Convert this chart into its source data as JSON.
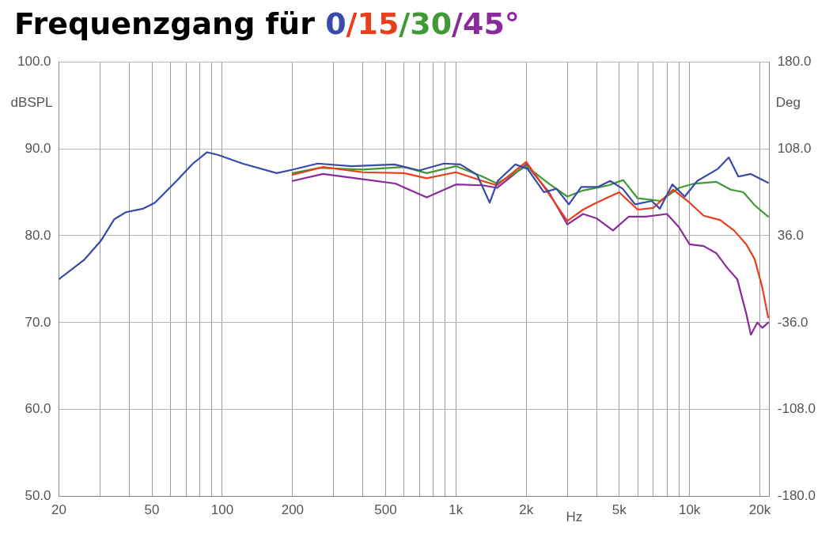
{
  "chart_data": {
    "type": "line",
    "title": "Frequenzgang für",
    "xlabel": "Hz",
    "ylabel": "dBSPL",
    "y2label": "Deg",
    "log": "x",
    "grid": true,
    "legend": false,
    "marker": "none",
    "line_style": "solid",
    "xlim": [
      20,
      22000
    ],
    "ylim": [
      50,
      100
    ],
    "y2lim": [
      -180,
      180
    ],
    "xticks": [
      20,
      {
        "value": 30,
        "label": null
      },
      {
        "value": 40,
        "label": null
      },
      50,
      {
        "value": 60,
        "label": null
      },
      {
        "value": 70,
        "label": null
      },
      {
        "value": 80,
        "label": null
      },
      {
        "value": 90,
        "label": null
      },
      100,
      200,
      {
        "value": 300,
        "label": null
      },
      {
        "value": 400,
        "label": null
      },
      500,
      {
        "value": 600,
        "label": null
      },
      {
        "value": 700,
        "label": null
      },
      {
        "value": 800,
        "label": null
      },
      {
        "value": 900,
        "label": null
      },
      {
        "value": 1000,
        "label": "1k"
      },
      {
        "value": 2000,
        "label": "2k"
      },
      {
        "value": 3000,
        "label": null
      },
      {
        "value": 4000,
        "label": null
      },
      {
        "value": 5000,
        "label": "5k"
      },
      {
        "value": 6000,
        "label": null
      },
      {
        "value": 7000,
        "label": null
      },
      {
        "value": 8000,
        "label": null
      },
      {
        "value": 9000,
        "label": null
      },
      {
        "value": 10000,
        "label": "10k"
      },
      {
        "value": 20000,
        "label": "20k"
      }
    ],
    "yticks": [
      {
        "value": 50,
        "label": "50.0"
      },
      {
        "value": 60,
        "label": "60.0"
      },
      {
        "value": 70,
        "label": "70.0"
      },
      {
        "value": 80,
        "label": "80.0"
      },
      {
        "value": 90,
        "label": "90.0"
      },
      {
        "value": 100,
        "label": "100.0"
      }
    ],
    "y2ticks": [
      {
        "value": -180,
        "label": "-180.0"
      },
      {
        "value": -108,
        "label": "-108.0"
      },
      {
        "value": -36,
        "label": "-36.0"
      },
      {
        "value": 36,
        "label": "36.0"
      },
      {
        "value": 108,
        "label": "108.0"
      },
      {
        "value": 180,
        "label": "180.0"
      }
    ],
    "series": [
      {
        "name": "0",
        "color": "#3a4aa8",
        "x": [
          20,
          25.6,
          30.2,
          34.5,
          38.7,
          45.7,
          51.5,
          63.7,
          74.9,
          86.1,
          95.7,
          122,
          171,
          200,
          256,
          357,
          545,
          697,
          888,
          1045,
          1232,
          1395,
          1510,
          1796,
          2024,
          2383,
          2695,
          3044,
          3440,
          4046,
          4575,
          5173,
          5849,
          6886,
          7460,
          8435,
          9539,
          10790,
          13240,
          14720,
          16180,
          18290,
          21670
        ],
        "values": [
          75.0,
          77.2,
          79.4,
          81.9,
          82.7,
          83.1,
          83.8,
          86.3,
          88.3,
          89.6,
          89.3,
          88.3,
          87.2,
          87.6,
          88.3,
          88.0,
          88.2,
          87.5,
          88.3,
          88.2,
          87.0,
          83.8,
          86.3,
          88.2,
          87.7,
          85.0,
          85.4,
          83.6,
          85.6,
          85.6,
          86.3,
          85.4,
          83.6,
          84.0,
          83.1,
          85.9,
          84.5,
          86.3,
          87.7,
          89.0,
          86.8,
          87.1,
          86.1
        ]
      },
      {
        "name": "/15",
        "color": "#e8401c",
        "x": [
          200,
          270,
          400,
          600,
          750,
          1000,
          1300,
          1500,
          2000,
          2400,
          3000,
          3500,
          4000,
          5000,
          6000,
          7000,
          8500,
          10000,
          11500,
          13500,
          15500,
          17500,
          19000,
          20500,
          21700
        ],
        "values": [
          87.0,
          87.9,
          87.3,
          87.2,
          86.6,
          87.3,
          86.3,
          85.8,
          88.5,
          85.5,
          81.7,
          83.0,
          83.8,
          85.0,
          83.0,
          83.2,
          85.3,
          83.8,
          82.3,
          81.8,
          80.6,
          79.0,
          77.3,
          74.0,
          70.6
        ]
      },
      {
        "name": "/30",
        "color": "#3f9a35",
        "x": [
          200,
          260,
          400,
          600,
          750,
          1000,
          1300,
          1500,
          2000,
          2500,
          3000,
          3500,
          4500,
          5200,
          6000,
          7500,
          9000,
          10500,
          13000,
          15000,
          17000,
          19000,
          21700
        ],
        "values": [
          87.2,
          87.8,
          87.6,
          87.9,
          87.2,
          88.0,
          86.8,
          86.0,
          88.0,
          86.0,
          84.5,
          85.2,
          85.8,
          86.4,
          84.3,
          84.0,
          85.5,
          86.0,
          86.2,
          85.3,
          85.0,
          83.5,
          82.2
        ]
      },
      {
        "name": "/45°",
        "color": "#8b2a9c",
        "x": [
          200,
          270,
          400,
          550,
          750,
          1000,
          1300,
          1500,
          2000,
          2500,
          3000,
          3500,
          4000,
          4700,
          5500,
          6500,
          8000,
          9000,
          10000,
          11500,
          13000,
          14500,
          16000,
          17500,
          18300,
          19500,
          20500,
          21700
        ],
        "values": [
          86.3,
          87.1,
          86.5,
          86.0,
          84.4,
          85.9,
          85.8,
          85.5,
          88.2,
          85.0,
          81.3,
          82.5,
          82.0,
          80.6,
          82.2,
          82.2,
          82.5,
          81.0,
          79.0,
          78.8,
          78.0,
          76.3,
          75.0,
          71.0,
          68.6,
          70.0,
          69.4,
          70.0
        ]
      }
    ]
  }
}
